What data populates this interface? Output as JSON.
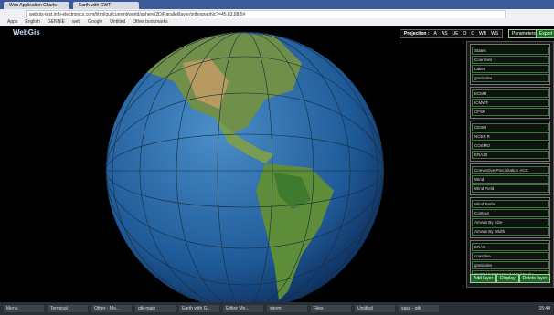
{
  "browser": {
    "tabs": [
      "Web Application Charts",
      "Earth with GWT"
    ],
    "url": "webgis-test.info-electronics.com/html/gui/current/world/sphere/2D/Parallel/layer/orthographic?=45,63,88,5#",
    "bookmarks": [
      "Apps",
      "English",
      "GENNIE",
      "web",
      "Google",
      "Untitled",
      "Other bookmarks"
    ]
  },
  "header": {
    "logo": "WebGis",
    "projection_label": "Projection :",
    "projections": [
      "A",
      "AS",
      "UE",
      "O",
      "C",
      "WB",
      "WS"
    ],
    "parameters": "Parameters",
    "export": "Export"
  },
  "panel": {
    "groups": [
      [
        "States",
        "Countries",
        "Lakes",
        "graticules"
      ],
      [
        "ECMR",
        "ICMWF",
        "CFSR"
      ],
      [
        "CESM",
        "NCEP R",
        "COSMO",
        "ERA20"
      ],
      [
        "Convective Precipitation ACC",
        "Wind",
        "Wind Field"
      ],
      [
        "Wind Barbs",
        "Contour",
        "Arrows By Size",
        "Arrows By Width"
      ],
      [
        "ERA5",
        "coastline",
        "graticules",
        "CMIP-UKESM Wind Wind Barbs"
      ]
    ],
    "buttons": [
      "Add layer",
      "Display",
      "Delete layer"
    ]
  },
  "taskbar": {
    "items": [
      "Menu",
      "Terminal",
      "Other - Mo...",
      "gtk-main",
      "Earth with G...",
      "Editor Mo...",
      "xterm",
      "Files",
      "Untitled",
      "sass - gtk"
    ],
    "clock": "15:40"
  }
}
